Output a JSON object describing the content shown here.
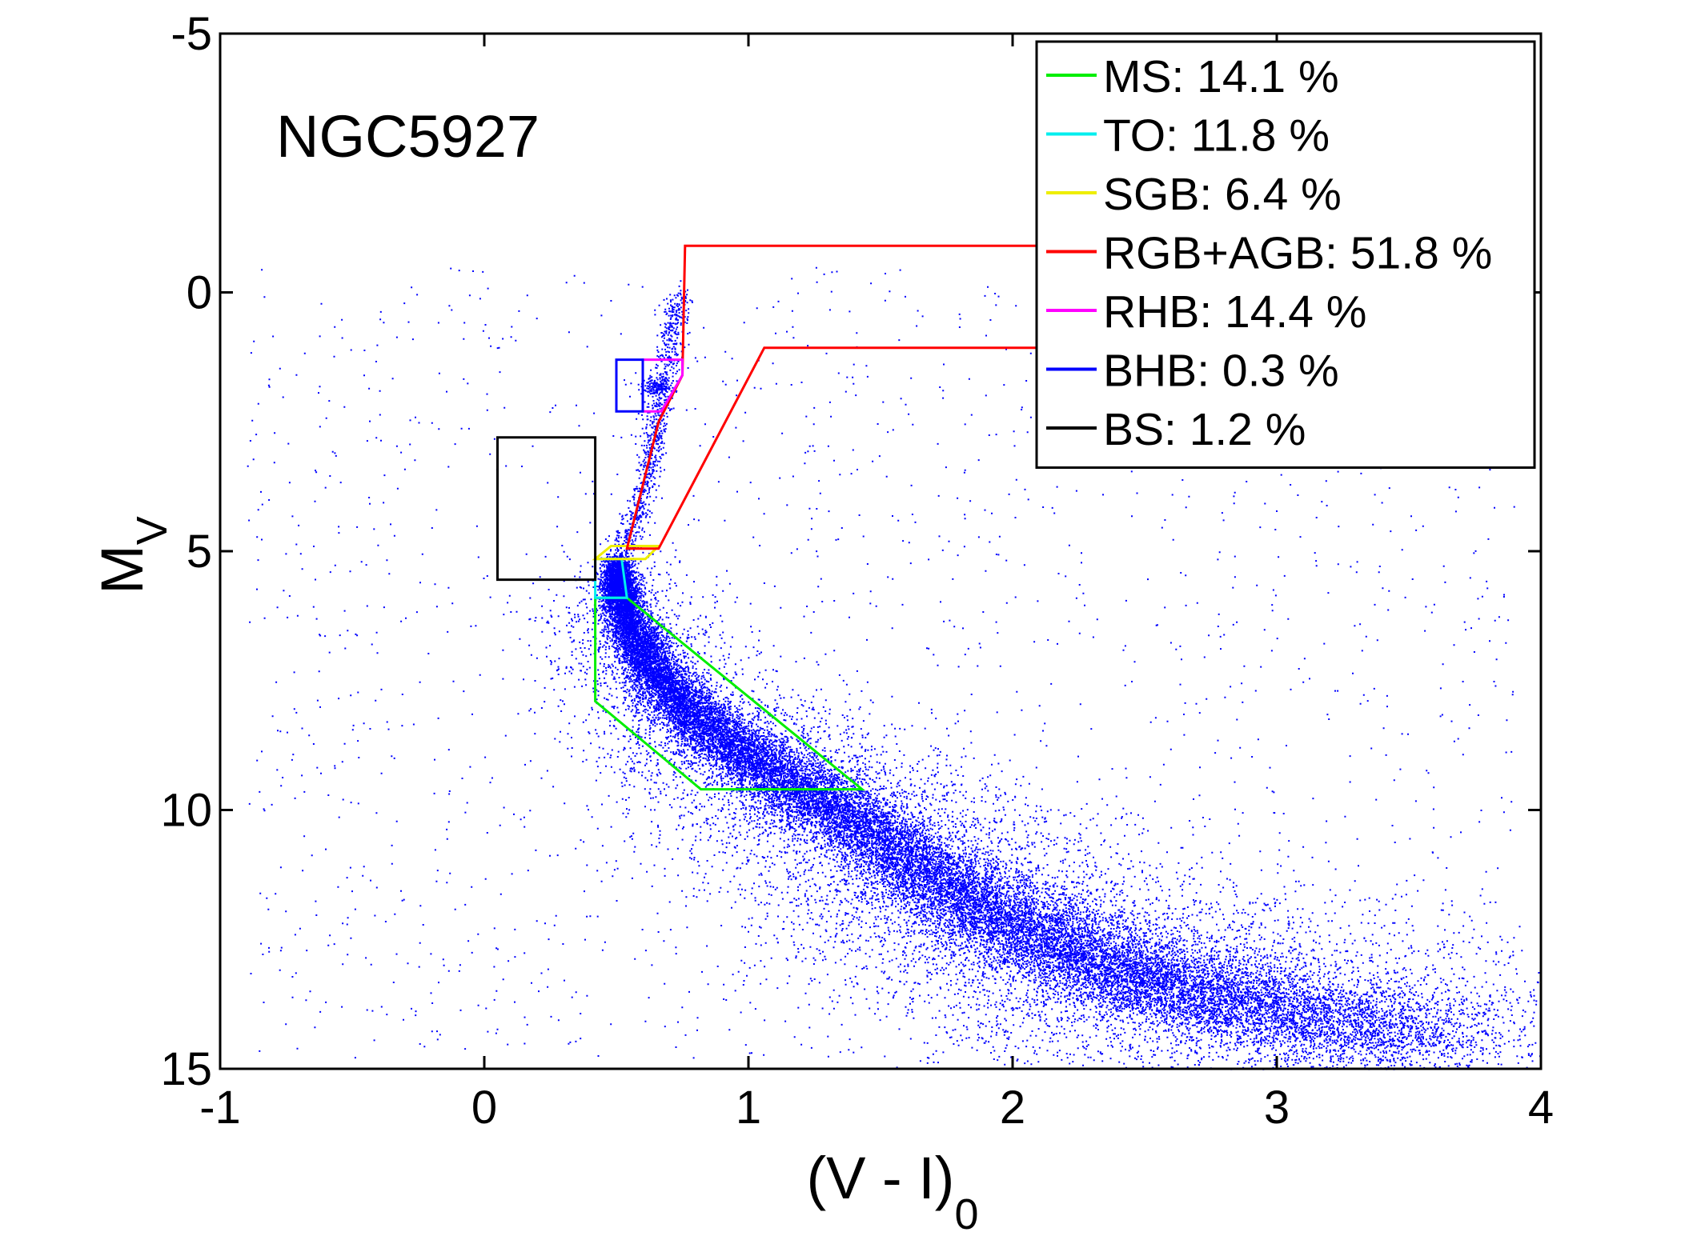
{
  "chart_data": {
    "type": "scatter",
    "title": "NGC5927",
    "xlabel": {
      "main": "(V - I)",
      "sub": "0"
    },
    "ylabel": {
      "main": "M",
      "sub": "V"
    },
    "xlim": [
      -1,
      4
    ],
    "ylim": [
      15,
      -5
    ],
    "y_inverted": true,
    "x_ticks": [
      -1,
      0,
      1,
      2,
      3,
      4
    ],
    "y_ticks": [
      -5,
      0,
      5,
      10,
      15
    ],
    "grid": false,
    "legend_position": "top-right",
    "point_color": "#0000ff",
    "stars": {
      "description_of_distribution": "dense ridge along the main sequence and red giant branch",
      "main_sequence_ridge": [
        [
          0.5,
          5.3
        ],
        [
          0.52,
          6.0
        ],
        [
          0.6,
          7.0
        ],
        [
          0.75,
          8.0
        ],
        [
          0.95,
          8.8
        ],
        [
          1.2,
          9.6
        ],
        [
          1.45,
          10.4
        ],
        [
          1.7,
          11.3
        ],
        [
          1.95,
          12.1
        ],
        [
          2.25,
          12.8
        ],
        [
          2.6,
          13.4
        ],
        [
          3.0,
          13.9
        ],
        [
          3.6,
          14.4
        ]
      ],
      "giant_branch_ridge": [
        [
          0.52,
          5.0
        ],
        [
          0.58,
          4.2
        ],
        [
          0.63,
          3.2
        ],
        [
          0.66,
          2.2
        ],
        [
          0.7,
          1.0
        ],
        [
          0.74,
          0.0
        ]
      ],
      "red_clump": [
        0.65,
        1.8
      ]
    },
    "regions": [
      {
        "name": "MS",
        "percent": 14.1,
        "color": "#00ee00",
        "polygon": [
          [
            0.42,
            5.9
          ],
          [
            0.54,
            5.9
          ],
          [
            1.43,
            9.6
          ],
          [
            0.82,
            9.6
          ],
          [
            0.42,
            7.9
          ]
        ]
      },
      {
        "name": "TO",
        "percent": 11.8,
        "color": "#00eeee",
        "polygon": [
          [
            0.42,
            5.15
          ],
          [
            0.52,
            5.15
          ],
          [
            0.54,
            5.9
          ],
          [
            0.42,
            5.9
          ]
        ]
      },
      {
        "name": "SGB",
        "percent": 6.4,
        "color": "#eeee00",
        "polygon": [
          [
            0.42,
            5.15
          ],
          [
            0.48,
            4.9
          ],
          [
            0.66,
            4.9
          ],
          [
            0.61,
            5.15
          ]
        ]
      },
      {
        "name": "RGB+AGB",
        "percent": 51.8,
        "color": "#ff0000",
        "polygon": [
          [
            0.54,
            4.95
          ],
          [
            0.66,
            2.5
          ],
          [
            0.75,
            1.6
          ],
          [
            0.76,
            -0.9
          ],
          [
            2.1,
            -0.9
          ],
          [
            2.1,
            1.07
          ],
          [
            1.06,
            1.07
          ],
          [
            0.66,
            4.95
          ]
        ]
      },
      {
        "name": "RHB",
        "percent": 14.4,
        "color": "#ff00ff",
        "polygon": [
          [
            0.6,
            1.3
          ],
          [
            0.75,
            1.3
          ],
          [
            0.75,
            1.6
          ],
          [
            0.67,
            2.3
          ],
          [
            0.6,
            2.3
          ]
        ]
      },
      {
        "name": "BHB",
        "percent": 0.3,
        "color": "#0000ff",
        "polygon": [
          [
            0.5,
            1.3
          ],
          [
            0.6,
            1.3
          ],
          [
            0.6,
            2.3
          ],
          [
            0.5,
            2.3
          ]
        ]
      },
      {
        "name": "BS",
        "percent": 1.2,
        "color": "#000000",
        "polygon": [
          [
            0.05,
            2.8
          ],
          [
            0.42,
            2.8
          ],
          [
            0.42,
            5.55
          ],
          [
            0.05,
            5.55
          ]
        ]
      }
    ],
    "legend": [
      {
        "label": "MS: 14.1 %",
        "color": "#00ee00"
      },
      {
        "label": "TO: 11.8 %",
        "color": "#00eeee"
      },
      {
        "label": "SGB: 6.4 %",
        "color": "#eeee00"
      },
      {
        "label": "RGB+AGB: 51.8 %",
        "color": "#ff0000"
      },
      {
        "label": "RHB: 14.4 %",
        "color": "#ff00ff"
      },
      {
        "label": "BHB: 0.3 %",
        "color": "#0000ff"
      },
      {
        "label": "BS: 1.2 %",
        "color": "#000000"
      }
    ]
  }
}
